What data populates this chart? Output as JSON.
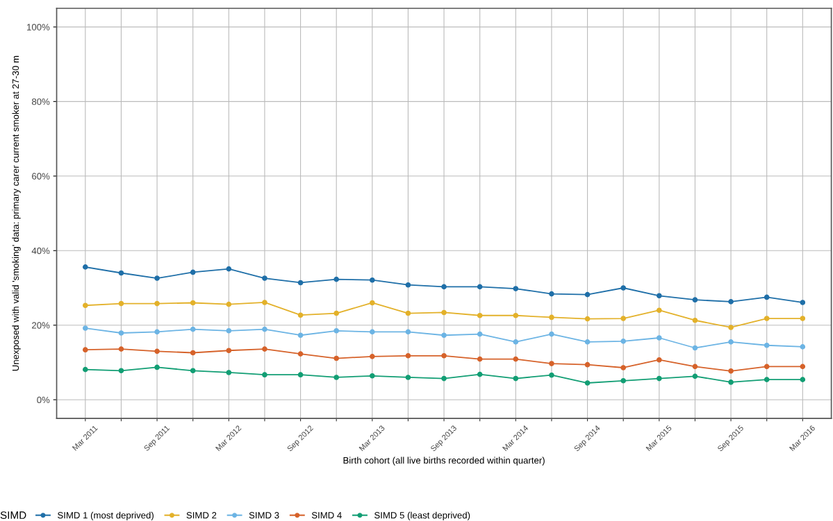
{
  "chart_data": {
    "type": "line",
    "xlabel": "Birth cohort (all live births recorded within quarter)",
    "ylabel": "Unexposed with valid 'smoking' data: primary carer current smoker at 27-30 m",
    "legend_title": "SIMD",
    "legend": "bottom",
    "grid": true,
    "marker": "circle",
    "line_style": "solid",
    "categories": [
      "Mar 2011",
      null,
      "Sep 2011",
      null,
      "Mar 2012",
      null,
      "Sep 2012",
      null,
      "Mar 2013",
      null,
      "Sep 2013",
      null,
      "Mar 2014",
      null,
      "Sep 2014",
      null,
      "Mar 2015",
      null,
      "Sep 2015",
      null,
      "Mar 2016"
    ],
    "ylim": [
      -5,
      105
    ],
    "yticks": [
      {
        "value": 0,
        "label": "0%"
      },
      {
        "value": 20,
        "label": "20%"
      },
      {
        "value": 40,
        "label": "40%"
      },
      {
        "value": 60,
        "label": "60%"
      },
      {
        "value": 80,
        "label": "80%"
      },
      {
        "value": 100,
        "label": "100%"
      }
    ],
    "series": [
      {
        "name": "SIMD 1 (most deprived)",
        "color": "#1f6fa8",
        "values": [
          35.6,
          34.0,
          32.6,
          34.2,
          35.1,
          32.6,
          31.4,
          32.3,
          32.1,
          30.8,
          30.3,
          30.3,
          29.8,
          28.4,
          28.2,
          30.0,
          27.9,
          26.8,
          26.3,
          27.5,
          26.1
        ]
      },
      {
        "name": "SIMD 2",
        "color": "#e3b12a",
        "values": [
          25.3,
          25.8,
          25.8,
          26.0,
          25.6,
          26.1,
          22.7,
          23.2,
          26.0,
          23.2,
          23.4,
          22.6,
          22.6,
          22.1,
          21.7,
          21.8,
          24.0,
          21.3,
          19.4,
          21.8,
          21.8
        ]
      },
      {
        "name": "SIMD 3",
        "color": "#6cb4e4",
        "values": [
          19.2,
          17.9,
          18.2,
          18.9,
          18.5,
          18.9,
          17.3,
          18.5,
          18.2,
          18.2,
          17.3,
          17.6,
          15.5,
          17.6,
          15.5,
          15.7,
          16.6,
          13.9,
          15.5,
          14.6,
          14.2
        ]
      },
      {
        "name": "SIMD 4",
        "color": "#d6622a",
        "values": [
          13.4,
          13.6,
          13.0,
          12.6,
          13.2,
          13.6,
          12.3,
          11.1,
          11.6,
          11.8,
          11.8,
          10.9,
          10.9,
          9.7,
          9.4,
          8.6,
          10.7,
          8.9,
          7.7,
          8.9,
          8.9
        ]
      },
      {
        "name": "SIMD 5 (least deprived)",
        "color": "#129e74",
        "values": [
          8.1,
          7.8,
          8.7,
          7.8,
          7.3,
          6.7,
          6.7,
          6.0,
          6.4,
          6.0,
          5.7,
          6.8,
          5.7,
          6.6,
          4.5,
          5.1,
          5.7,
          6.3,
          4.7,
          5.4,
          5.4
        ]
      }
    ]
  }
}
